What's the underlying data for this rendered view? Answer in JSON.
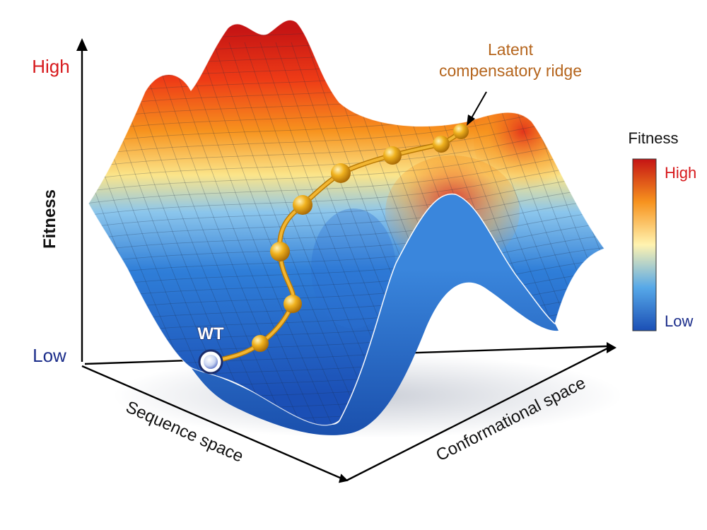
{
  "fitness_axis": {
    "title": "Fitness",
    "high_label": "High",
    "low_label": "Low"
  },
  "sequence_axis": {
    "title": "Sequence space"
  },
  "conformational_axis": {
    "title": "Conformational space"
  },
  "wild_type": {
    "label": "WT"
  },
  "ridge": {
    "annotation_line1": "Latent",
    "annotation_line2": "compensatory ridge"
  },
  "legend": {
    "title": "Fitness",
    "high_label": "High",
    "low_label": "Low"
  },
  "colors": {
    "high": "#d7191c",
    "mid": "#fbe58a",
    "low": "#1f5fc2",
    "path": "#e8a417",
    "annotation": "#b5651d",
    "low_text": "#1b2d8a"
  }
}
